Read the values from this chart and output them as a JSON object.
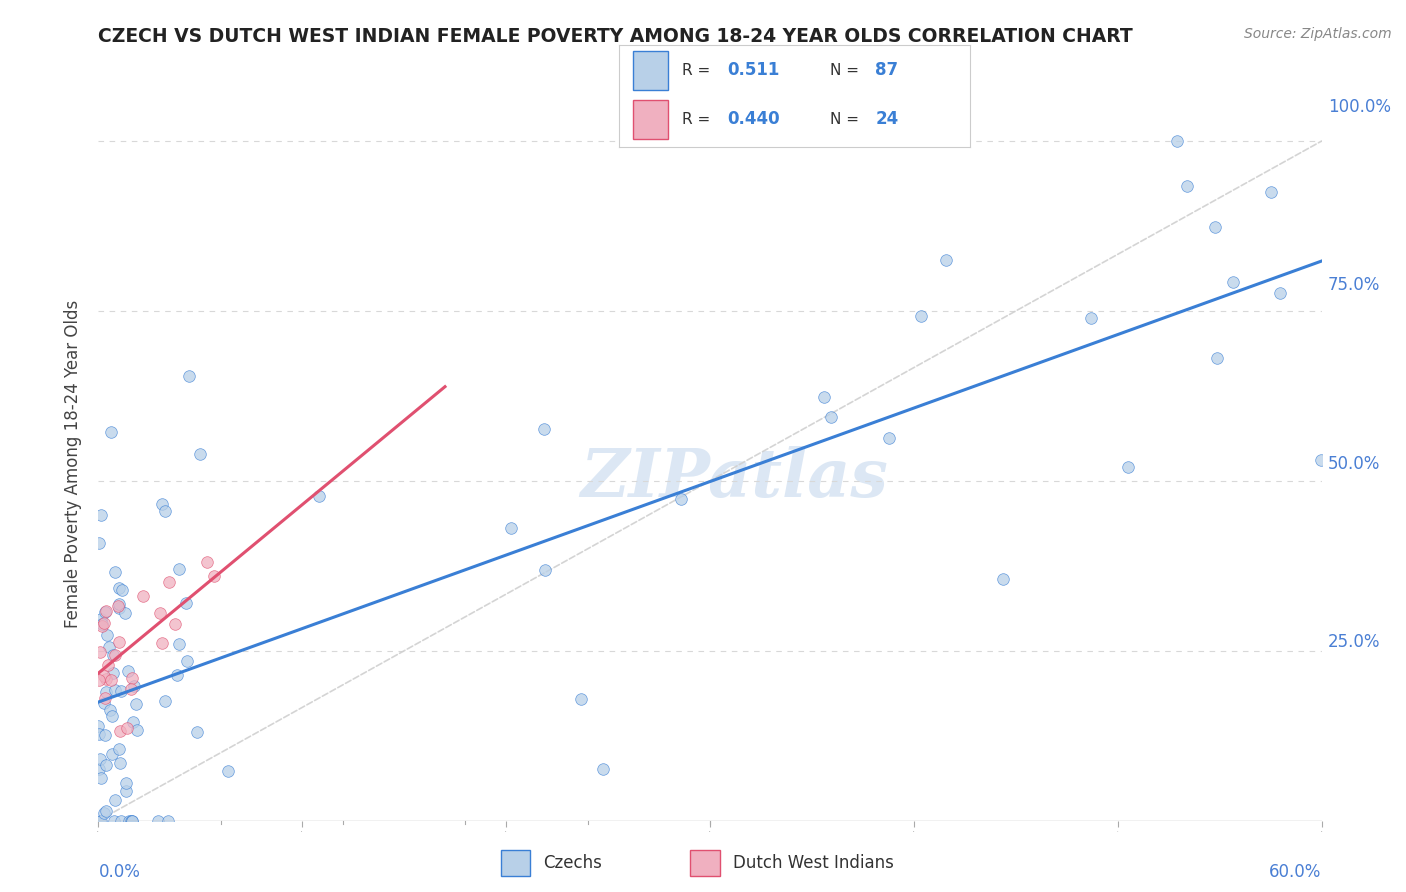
{
  "title": "CZECH VS DUTCH WEST INDIAN FEMALE POVERTY AMONG 18-24 YEAR OLDS CORRELATION CHART",
  "source": "Source: ZipAtlas.com",
  "ylabel": "Female Poverty Among 18-24 Year Olds",
  "xlim": [
    0.0,
    0.6
  ],
  "ylim": [
    0.0,
    1.05
  ],
  "r_czech": 0.511,
  "n_czech": 87,
  "r_dutch": 0.44,
  "n_dutch": 24,
  "color_czech": "#b8d0e8",
  "color_dutch": "#f0b0c0",
  "color_czech_line": "#3a7fd5",
  "color_dutch_line": "#e05070",
  "color_diagonal": "#d0d0d0",
  "color_ytick": "#4a7fd4",
  "color_grid": "#d8d8d8",
  "watermark": "ZIPatlas",
  "background_color": "#ffffff",
  "legend_r_color": "#4a7fd4",
  "legend_n_color": "#4a7fd4"
}
